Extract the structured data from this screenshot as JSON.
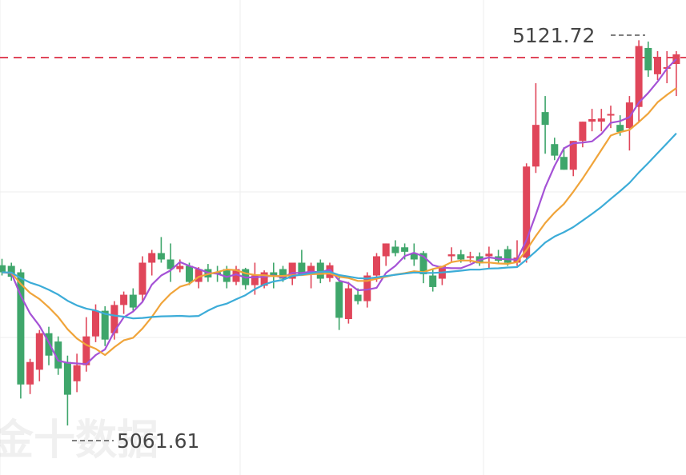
{
  "chart_data": {
    "type": "candlestick",
    "title": "",
    "xlabel": "",
    "ylabel": "",
    "ylim": [
      5055,
      5124
    ],
    "grid": true,
    "reference_line": {
      "value": 5119.0,
      "style": "dashed",
      "color": "#e0465a"
    },
    "annotations": {
      "high": {
        "label": "5121.72",
        "value": 5121.72
      },
      "low": {
        "label": "5061.61",
        "value": 5061.61
      }
    },
    "watermark": "金十数据",
    "colors": {
      "up": "#e0465a",
      "down": "#3fa66b",
      "grid": "#eeeeee"
    },
    "candles": [
      [
        5086.6,
        5087.6,
        5085.0,
        5085.5
      ],
      [
        5086.5,
        5087.0,
        5084.2,
        5084.8
      ],
      [
        5085.5,
        5086.0,
        5065.8,
        5068.0
      ],
      [
        5068.0,
        5072.0,
        5066.5,
        5071.5
      ],
      [
        5070.3,
        5076.5,
        5068.5,
        5076.0
      ],
      [
        5076.0,
        5077.0,
        5071.0,
        5072.5
      ],
      [
        5074.7,
        5075.5,
        5069.5,
        5070.5
      ],
      [
        5071.5,
        5072.5,
        5061.6,
        5066.4
      ],
      [
        5068.5,
        5072.8,
        5066.8,
        5071.0
      ],
      [
        5071.0,
        5078.5,
        5070.0,
        5075.5
      ],
      [
        5075.5,
        5080.5,
        5074.6,
        5079.5
      ],
      [
        5079.5,
        5080.2,
        5074.0,
        5075.0
      ],
      [
        5076.0,
        5081.0,
        5075.0,
        5080.4
      ],
      [
        5080.4,
        5082.5,
        5079.0,
        5082.0
      ],
      [
        5082.0,
        5083.0,
        5079.5,
        5080.0
      ],
      [
        5082.0,
        5088.0,
        5081.0,
        5087.0
      ],
      [
        5087.0,
        5089.0,
        5085.0,
        5088.5
      ],
      [
        5088.5,
        5091.0,
        5087.0,
        5087.5
      ],
      [
        5087.5,
        5090.0,
        5084.0,
        5086.0
      ],
      [
        5086.0,
        5087.5,
        5085.5,
        5086.5
      ],
      [
        5086.5,
        5087.0,
        5083.5,
        5084.0
      ],
      [
        5084.0,
        5086.3,
        5083.0,
        5086.0
      ],
      [
        5086.0,
        5086.8,
        5084.0,
        5084.7
      ],
      [
        5085.5,
        5086.5,
        5084.0,
        5085.2
      ],
      [
        5086.0,
        5086.5,
        5083.0,
        5084.0
      ],
      [
        5084.0,
        5086.5,
        5083.5,
        5086.0
      ],
      [
        5086.0,
        5086.2,
        5082.8,
        5083.5
      ],
      [
        5083.5,
        5087.0,
        5082.0,
        5085.0
      ],
      [
        5083.4,
        5085.8,
        5083.0,
        5085.5
      ],
      [
        5085.5,
        5087.0,
        5083.0,
        5085.0
      ],
      [
        5086.0,
        5086.5,
        5084.0,
        5084.5
      ],
      [
        5084.5,
        5087.0,
        5083.5,
        5087.0
      ],
      [
        5087.0,
        5089.0,
        5085.0,
        5085.0
      ],
      [
        5085.5,
        5087.0,
        5083.0,
        5086.5
      ],
      [
        5087.0,
        5087.5,
        5083.8,
        5084.5
      ],
      [
        5084.6,
        5087.0,
        5084.0,
        5086.6
      ],
      [
        5084.0,
        5085.0,
        5076.5,
        5078.4
      ],
      [
        5078.2,
        5084.0,
        5077.5,
        5083.0
      ],
      [
        5082.0,
        5083.0,
        5080.5,
        5081.0
      ],
      [
        5081.0,
        5085.5,
        5080.0,
        5085.0
      ],
      [
        5085.0,
        5088.5,
        5084.0,
        5088.0
      ],
      [
        5088.0,
        5090.0,
        5086.5,
        5090.0
      ],
      [
        5089.5,
        5090.5,
        5088.0,
        5088.5
      ],
      [
        5089.4,
        5090.0,
        5087.5,
        5088.7
      ],
      [
        5088.5,
        5090.0,
        5086.5,
        5087.5
      ],
      [
        5088.5,
        5088.8,
        5083.8,
        5085.2
      ],
      [
        5085.0,
        5086.0,
        5082.5,
        5083.2
      ],
      [
        5084.5,
        5086.5,
        5083.5,
        5086.5
      ],
      [
        5088.0,
        5089.4,
        5087.0,
        5088.3
      ],
      [
        5088.3,
        5089.0,
        5087.0,
        5087.5
      ],
      [
        5088.0,
        5088.7,
        5087.0,
        5088.0
      ],
      [
        5088.0,
        5088.6,
        5086.5,
        5086.9
      ],
      [
        5088.0,
        5089.5,
        5086.0,
        5088.4
      ],
      [
        5088.0,
        5089.0,
        5087.0,
        5087.3
      ],
      [
        5089.1,
        5089.6,
        5086.5,
        5087.0
      ],
      [
        5087.0,
        5090.5,
        5086.5,
        5087.8
      ],
      [
        5087.8,
        5102.5,
        5087.0,
        5102.0
      ],
      [
        5102.0,
        5115.0,
        5101.0,
        5108.5
      ],
      [
        5110.5,
        5113.0,
        5104.0,
        5108.5
      ],
      [
        5105.5,
        5106.5,
        5103.0,
        5103.7
      ],
      [
        5103.5,
        5105.0,
        5101.5,
        5101.5
      ],
      [
        5101.5,
        5106.0,
        5100.5,
        5106.0
      ],
      [
        5106.0,
        5109.0,
        5105.0,
        5109.0
      ],
      [
        5109.0,
        5111.0,
        5107.5,
        5109.4
      ],
      [
        5109.0,
        5111.0,
        5107.5,
        5109.5
      ],
      [
        5110.0,
        5111.5,
        5108.0,
        5110.2
      ],
      [
        5108.5,
        5110.0,
        5106.8,
        5107.4
      ],
      [
        5108.0,
        5113.0,
        5104.5,
        5112.0
      ],
      [
        5111.3,
        5121.7,
        5109.0,
        5120.8
      ],
      [
        5120.5,
        5121.5,
        5116.0,
        5117.0
      ],
      [
        5116.4,
        5120.0,
        5115.5,
        5119.0
      ],
      [
        5117.5,
        5120.0,
        5115.0,
        5117.5
      ],
      [
        5118.0,
        5120.0,
        5113.0,
        5119.5
      ]
    ]
  }
}
